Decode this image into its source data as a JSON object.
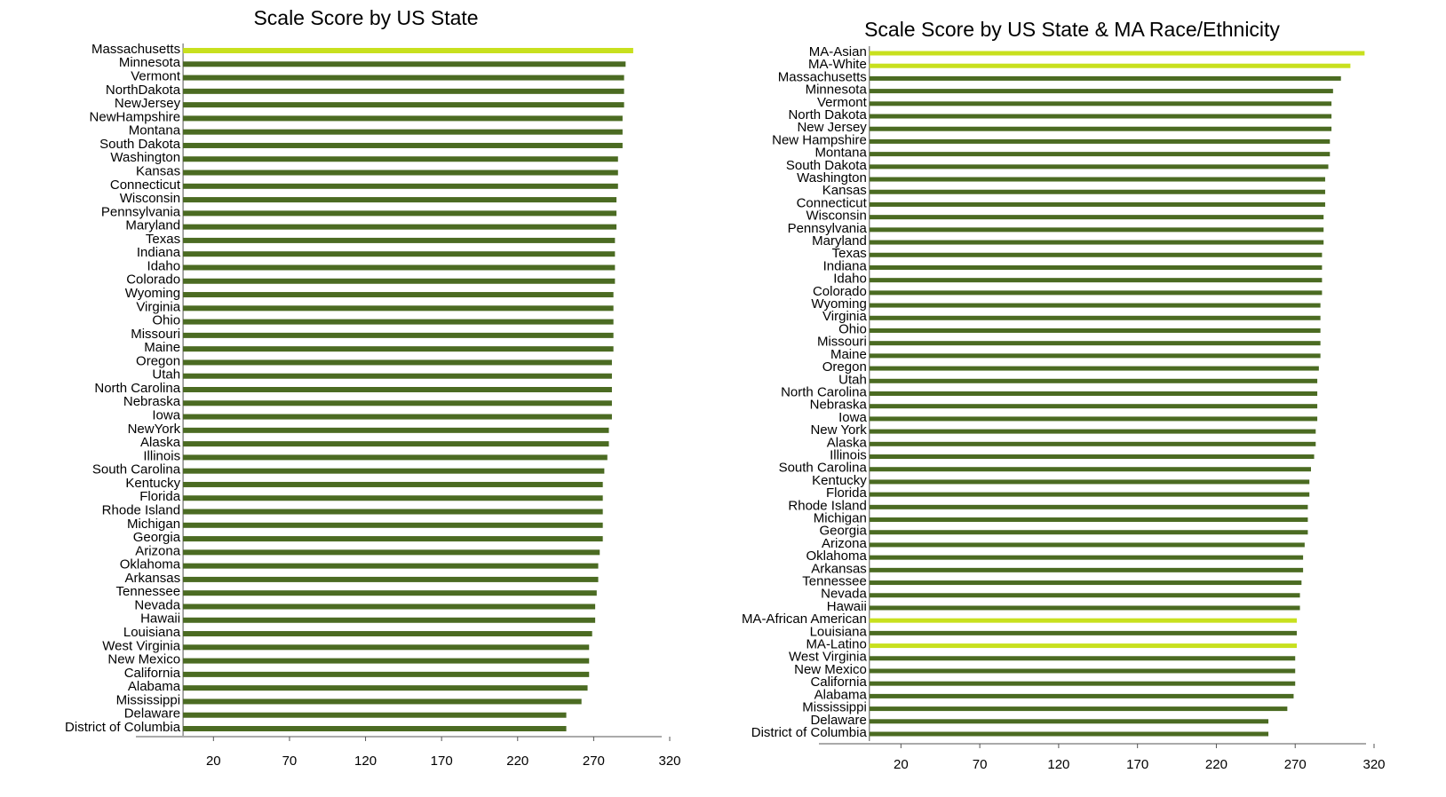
{
  "chart_data": [
    {
      "type": "barh",
      "title": "Scale Score by US State",
      "categories": [
        "Massachusetts",
        "Minnesota",
        "Vermont",
        "NorthDakota",
        "NewJersey",
        "NewHampshire",
        "Montana",
        "South Dakota",
        "Washington",
        "Kansas",
        "Connecticut",
        "Wisconsin",
        "Pennsylvania",
        "Maryland",
        "Texas",
        "Indiana",
        "Idaho",
        "Colorado",
        "Wyoming",
        "Virginia",
        "Ohio",
        "Missouri",
        "Maine",
        "Oregon",
        "Utah",
        "North Carolina",
        "Nebraska",
        "Iowa",
        "NewYork",
        "Alaska",
        "Illinois",
        "South Carolina",
        "Kentucky",
        "Florida",
        "Rhode Island",
        "Michigan",
        "Georgia",
        "Arizona",
        "Oklahoma",
        "Arkansas",
        "Tennessee",
        "Nevada",
        "Hawaii",
        "Louisiana",
        "West Virginia",
        "New Mexico",
        "California",
        "Alabama",
        "Mississippi",
        "Delaware",
        "District of Columbia"
      ],
      "values": [
        296,
        291,
        290,
        290,
        290,
        289,
        289,
        289,
        286,
        286,
        286,
        285,
        285,
        285,
        284,
        284,
        284,
        284,
        283,
        283,
        283,
        283,
        283,
        282,
        282,
        282,
        282,
        282,
        280,
        280,
        279,
        277,
        276,
        276,
        276,
        276,
        276,
        274,
        273,
        273,
        272,
        271,
        271,
        269,
        267,
        267,
        267,
        266,
        262,
        252,
        252
      ],
      "colors": [
        "#c8e01e",
        "#4b6b22",
        "#4b6b22",
        "#4b6b22",
        "#4b6b22",
        "#4b6b22",
        "#4b6b22",
        "#4b6b22",
        "#4b6b22",
        "#4b6b22",
        "#4b6b22",
        "#4b6b22",
        "#4b6b22",
        "#4b6b22",
        "#4b6b22",
        "#4b6b22",
        "#4b6b22",
        "#4b6b22",
        "#4b6b22",
        "#4b6b22",
        "#4b6b22",
        "#4b6b22",
        "#4b6b22",
        "#4b6b22",
        "#4b6b22",
        "#4b6b22",
        "#4b6b22",
        "#4b6b22",
        "#4b6b22",
        "#4b6b22",
        "#4b6b22",
        "#4b6b22",
        "#4b6b22",
        "#4b6b22",
        "#4b6b22",
        "#4b6b22",
        "#4b6b22",
        "#4b6b22",
        "#4b6b22",
        "#4b6b22",
        "#4b6b22",
        "#4b6b22",
        "#4b6b22",
        "#4b6b22",
        "#4b6b22",
        "#4b6b22",
        "#4b6b22",
        "#4b6b22",
        "#4b6b22",
        "#4b6b22",
        "#4b6b22"
      ],
      "xlim": [
        -31,
        320
      ],
      "xticks": [
        20,
        70,
        120,
        170,
        220,
        270,
        320
      ]
    },
    {
      "type": "barh",
      "title": "Scale Score by US State & MA Race/Ethnicity",
      "categories": [
        "MA-Asian",
        "MA-White",
        "Massachusetts",
        "Minnesota",
        "Vermont",
        "North Dakota",
        "New Jersey",
        "New Hampshire",
        "Montana",
        "South Dakota",
        "Washington",
        "Kansas",
        "Connecticut",
        "Wisconsin",
        "Pennsylvania",
        "Maryland",
        "Texas",
        "Indiana",
        "Idaho",
        "Colorado",
        "Wyoming",
        "Virginia",
        "Ohio",
        "Missouri",
        "Maine",
        "Oregon",
        "Utah",
        "North Carolina",
        "Nebraska",
        "Iowa",
        "New York",
        "Alaska",
        "Illinois",
        "South Carolina",
        "Kentucky",
        "Florida",
        "Rhode Island",
        "Michigan",
        "Georgia",
        "Arizona",
        "Oklahoma",
        "Arkansas",
        "Tennessee",
        "Nevada",
        "Hawaii",
        "MA-African American",
        "Louisiana",
        "MA-Latino",
        "West Virginia",
        "New Mexico",
        "California",
        "Alabama",
        "Mississippi",
        "Delaware",
        "District of Columbia"
      ],
      "values": [
        314,
        305,
        299,
        294,
        293,
        293,
        293,
        292,
        292,
        291,
        289,
        289,
        289,
        288,
        288,
        288,
        287,
        287,
        287,
        287,
        286,
        286,
        286,
        286,
        286,
        285,
        284,
        284,
        284,
        284,
        283,
        283,
        282,
        280,
        279,
        279,
        278,
        278,
        278,
        276,
        275,
        275,
        274,
        273,
        273,
        271,
        271,
        271,
        270,
        270,
        270,
        269,
        265,
        253,
        253
      ],
      "colors": [
        "#c8e01e",
        "#c8e01e",
        "#4b6b22",
        "#4b6b22",
        "#4b6b22",
        "#4b6b22",
        "#4b6b22",
        "#4b6b22",
        "#4b6b22",
        "#4b6b22",
        "#4b6b22",
        "#4b6b22",
        "#4b6b22",
        "#4b6b22",
        "#4b6b22",
        "#4b6b22",
        "#4b6b22",
        "#4b6b22",
        "#4b6b22",
        "#4b6b22",
        "#4b6b22",
        "#4b6b22",
        "#4b6b22",
        "#4b6b22",
        "#4b6b22",
        "#4b6b22",
        "#4b6b22",
        "#4b6b22",
        "#4b6b22",
        "#4b6b22",
        "#4b6b22",
        "#4b6b22",
        "#4b6b22",
        "#4b6b22",
        "#4b6b22",
        "#4b6b22",
        "#4b6b22",
        "#4b6b22",
        "#4b6b22",
        "#4b6b22",
        "#4b6b22",
        "#4b6b22",
        "#4b6b22",
        "#4b6b22",
        "#4b6b22",
        "#c8e01e",
        "#4b6b22",
        "#c8e01e",
        "#4b6b22",
        "#4b6b22",
        "#4b6b22",
        "#4b6b22",
        "#4b6b22",
        "#4b6b22",
        "#4b6b22"
      ],
      "xlim": [
        -32,
        320
      ],
      "xticks": [
        20,
        70,
        120,
        170,
        220,
        270,
        320
      ]
    }
  ]
}
